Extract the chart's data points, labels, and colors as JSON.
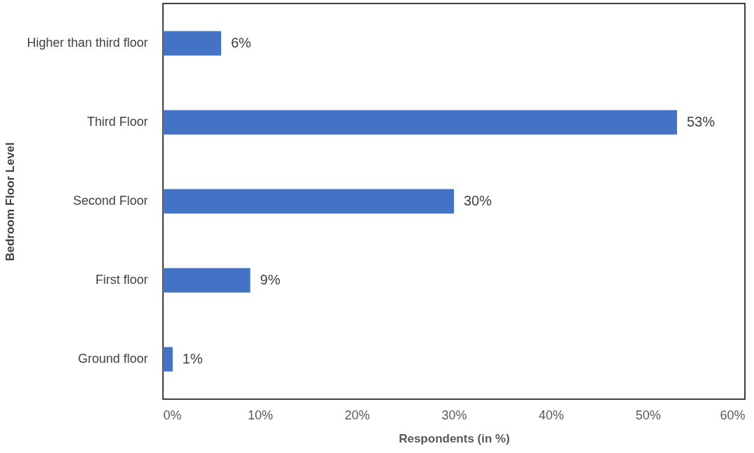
{
  "chart_data": {
    "type": "bar",
    "orientation": "horizontal",
    "xlabel": "Respondents (in %)",
    "ylabel": "Bedroom Floor Level",
    "categories": [
      "Higher than third floor",
      "Third Floor",
      "Second Floor",
      "First floor",
      "Ground floor"
    ],
    "values": [
      6,
      53,
      30,
      9,
      1
    ],
    "value_labels": [
      "6%",
      "53%",
      "30%",
      "9%",
      "1%"
    ],
    "color": "#4472c4",
    "xlim": [
      0,
      60
    ],
    "xticks": [
      {
        "value": 0,
        "label": "0%"
      },
      {
        "value": 10,
        "label": "10%"
      },
      {
        "value": 20,
        "label": "20%"
      },
      {
        "value": 30,
        "label": "30%"
      },
      {
        "value": 40,
        "label": "40%"
      },
      {
        "value": 50,
        "label": "50%"
      },
      {
        "value": 60,
        "label": "60%"
      }
    ],
    "grid": false
  }
}
